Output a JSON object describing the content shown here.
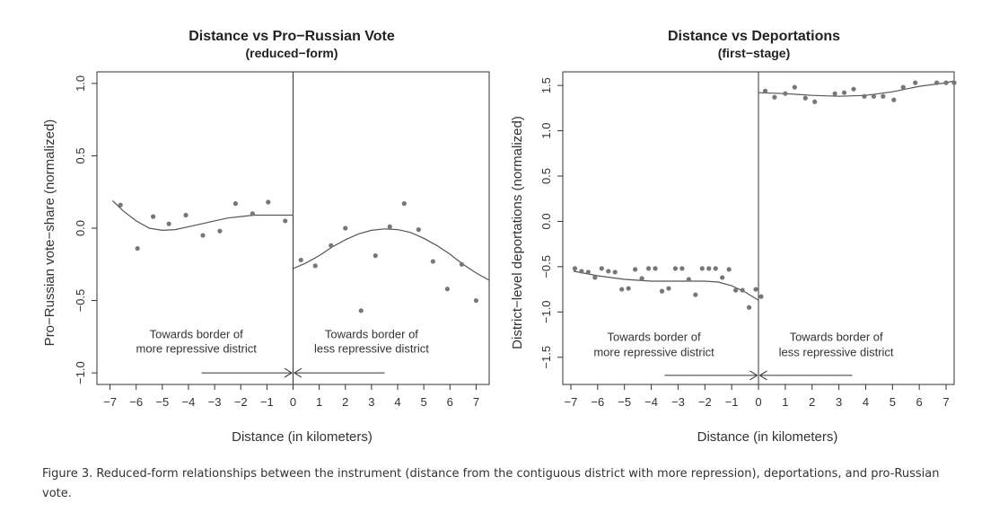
{
  "caption": "Figure 3. Reduced-form relationships between the instrument (distance from the contiguous district with more repression), deportations, and pro-Russian vote.",
  "chart_data": [
    {
      "type": "scatter",
      "title": "Distance vs Pro−Russian Vote",
      "subtitle": "(reduced−form)",
      "xlabel": "Distance (in kilometers)",
      "ylabel": "Pro−Russian vote−share (normalized)",
      "xlim": [
        -7.5,
        7.5
      ],
      "ylim": [
        -1.08,
        1.08
      ],
      "xticks": [
        -7,
        -6,
        -5,
        -4,
        -3,
        -2,
        -1,
        0,
        1,
        2,
        3,
        4,
        5,
        6,
        7
      ],
      "xtick_labels": [
        "−7",
        "−6",
        "−5",
        "−4",
        "−3",
        "−2",
        "−1",
        "0",
        "1",
        "2",
        "3",
        "4",
        "5",
        "6",
        "7"
      ],
      "yticks": [
        -1.0,
        -0.5,
        0.0,
        0.5,
        1.0
      ],
      "ytick_labels": [
        "−1.0",
        "−0.5",
        "0.0",
        "0.5",
        "1.0"
      ],
      "cutoff": 0,
      "grid": false,
      "points": [
        {
          "x": -6.6,
          "y": 0.16
        },
        {
          "x": -5.95,
          "y": -0.14
        },
        {
          "x": -5.35,
          "y": 0.08
        },
        {
          "x": -4.75,
          "y": 0.03
        },
        {
          "x": -4.1,
          "y": 0.09
        },
        {
          "x": -3.45,
          "y": -0.05
        },
        {
          "x": -2.8,
          "y": -0.02
        },
        {
          "x": -2.2,
          "y": 0.17
        },
        {
          "x": -1.55,
          "y": 0.1
        },
        {
          "x": -0.95,
          "y": 0.18
        },
        {
          "x": -0.3,
          "y": 0.05
        },
        {
          "x": 0.3,
          "y": -0.22
        },
        {
          "x": 0.85,
          "y": -0.26
        },
        {
          "x": 1.45,
          "y": -0.12
        },
        {
          "x": 2.0,
          "y": 0.0
        },
        {
          "x": 2.6,
          "y": -0.57
        },
        {
          "x": 3.15,
          "y": -0.19
        },
        {
          "x": 3.7,
          "y": 0.01
        },
        {
          "x": 4.25,
          "y": 0.17
        },
        {
          "x": 4.8,
          "y": -0.01
        },
        {
          "x": 5.35,
          "y": -0.23
        },
        {
          "x": 5.9,
          "y": -0.42
        },
        {
          "x": 6.45,
          "y": -0.25
        },
        {
          "x": 7.0,
          "y": -0.5
        }
      ],
      "fit_left": [
        {
          "x": -6.9,
          "y": 0.19
        },
        {
          "x": -6.5,
          "y": 0.12
        },
        {
          "x": -6.0,
          "y": 0.05
        },
        {
          "x": -5.5,
          "y": 0.0
        },
        {
          "x": -5.0,
          "y": -0.015
        },
        {
          "x": -4.5,
          "y": -0.01
        },
        {
          "x": -4.0,
          "y": 0.01
        },
        {
          "x": -3.5,
          "y": 0.03
        },
        {
          "x": -3.0,
          "y": 0.05
        },
        {
          "x": -2.5,
          "y": 0.07
        },
        {
          "x": -2.0,
          "y": 0.08
        },
        {
          "x": -1.5,
          "y": 0.09
        },
        {
          "x": -1.0,
          "y": 0.09
        },
        {
          "x": -0.5,
          "y": 0.09
        },
        {
          "x": 0.0,
          "y": 0.09
        }
      ],
      "fit_right": [
        {
          "x": 0.0,
          "y": -0.28
        },
        {
          "x": 0.5,
          "y": -0.24
        },
        {
          "x": 1.0,
          "y": -0.19
        },
        {
          "x": 1.5,
          "y": -0.13
        },
        {
          "x": 2.0,
          "y": -0.08
        },
        {
          "x": 2.5,
          "y": -0.04
        },
        {
          "x": 3.0,
          "y": -0.015
        },
        {
          "x": 3.5,
          "y": -0.005
        },
        {
          "x": 4.0,
          "y": -0.01
        },
        {
          "x": 4.5,
          "y": -0.03
        },
        {
          "x": 5.0,
          "y": -0.07
        },
        {
          "x": 5.5,
          "y": -0.12
        },
        {
          "x": 6.0,
          "y": -0.18
        },
        {
          "x": 6.5,
          "y": -0.25
        },
        {
          "x": 7.0,
          "y": -0.31
        },
        {
          "x": 7.5,
          "y": -0.36
        }
      ],
      "annotations": [
        {
          "line1": "Towards border of",
          "line2": "more repressive district",
          "x": -3.7,
          "y1": -0.76,
          "y2": -0.86,
          "anchor": "middle"
        },
        {
          "line1": "Towards border of",
          "line2": "less repressive district",
          "x": 3.0,
          "y1": -0.76,
          "y2": -0.86,
          "anchor": "middle"
        }
      ],
      "arrows": [
        {
          "x_from": -3.5,
          "x_to": -0.05,
          "y": -1.0
        },
        {
          "x_from": 3.5,
          "x_to": 0.05,
          "y": -1.0
        }
      ]
    },
    {
      "type": "scatter",
      "title": "Distance vs Deportations",
      "subtitle": "(first−stage)",
      "xlabel": "Distance (in kilometers)",
      "ylabel": "District−level deportations (normalized)",
      "xlim": [
        -7.3,
        7.3
      ],
      "ylim": [
        -1.8,
        1.65
      ],
      "xticks": [
        -7,
        -6,
        -5,
        -4,
        -3,
        -2,
        -1,
        0,
        1,
        2,
        3,
        4,
        5,
        6,
        7
      ],
      "xtick_labels": [
        "−7",
        "−6",
        "−5",
        "−4",
        "−3",
        "−2",
        "−1",
        "0",
        "1",
        "2",
        "3",
        "4",
        "5",
        "6",
        "7"
      ],
      "yticks": [
        -1.5,
        -1.0,
        -0.5,
        0.0,
        0.5,
        1.0,
        1.5
      ],
      "ytick_labels": [
        "−1.5",
        "−1.0",
        "−0.5",
        "0.0",
        "0.5",
        "1.0",
        "1.5"
      ],
      "cutoff": 0,
      "grid": false,
      "points": [
        {
          "x": -6.85,
          "y": -0.52
        },
        {
          "x": -6.6,
          "y": -0.55
        },
        {
          "x": -6.35,
          "y": -0.56
        },
        {
          "x": -6.1,
          "y": -0.62
        },
        {
          "x": -5.85,
          "y": -0.52
        },
        {
          "x": -5.6,
          "y": -0.55
        },
        {
          "x": -5.35,
          "y": -0.56
        },
        {
          "x": -5.1,
          "y": -0.75
        },
        {
          "x": -4.85,
          "y": -0.74
        },
        {
          "x": -4.6,
          "y": -0.53
        },
        {
          "x": -4.35,
          "y": -0.63
        },
        {
          "x": -4.1,
          "y": -0.52
        },
        {
          "x": -3.85,
          "y": -0.52
        },
        {
          "x": -3.6,
          "y": -0.77
        },
        {
          "x": -3.35,
          "y": -0.74
        },
        {
          "x": -3.1,
          "y": -0.52
        },
        {
          "x": -2.85,
          "y": -0.52
        },
        {
          "x": -2.6,
          "y": -0.64
        },
        {
          "x": -2.35,
          "y": -0.81
        },
        {
          "x": -2.1,
          "y": -0.52
        },
        {
          "x": -1.85,
          "y": -0.52
        },
        {
          "x": -1.6,
          "y": -0.52
        },
        {
          "x": -1.35,
          "y": -0.62
        },
        {
          "x": -1.1,
          "y": -0.53
        },
        {
          "x": -0.85,
          "y": -0.76
        },
        {
          "x": -0.6,
          "y": -0.76
        },
        {
          "x": -0.35,
          "y": -0.95
        },
        {
          "x": -0.1,
          "y": -0.75
        },
        {
          "x": 0.1,
          "y": -0.83
        },
        {
          "x": 0.25,
          "y": 1.44
        },
        {
          "x": 0.6,
          "y": 1.37
        },
        {
          "x": 1.0,
          "y": 1.41
        },
        {
          "x": 1.35,
          "y": 1.48
        },
        {
          "x": 1.75,
          "y": 1.36
        },
        {
          "x": 2.1,
          "y": 1.32
        },
        {
          "x": 2.85,
          "y": 1.41
        },
        {
          "x": 3.2,
          "y": 1.42
        },
        {
          "x": 3.55,
          "y": 1.46
        },
        {
          "x": 3.95,
          "y": 1.38
        },
        {
          "x": 4.3,
          "y": 1.38
        },
        {
          "x": 4.65,
          "y": 1.38
        },
        {
          "x": 5.05,
          "y": 1.34
        },
        {
          "x": 5.4,
          "y": 1.48
        },
        {
          "x": 5.85,
          "y": 1.53
        },
        {
          "x": 6.65,
          "y": 1.53
        },
        {
          "x": 7.0,
          "y": 1.53
        },
        {
          "x": 7.3,
          "y": 1.53
        }
      ],
      "fit_left": [
        {
          "x": -6.9,
          "y": -0.55
        },
        {
          "x": -6.0,
          "y": -0.6
        },
        {
          "x": -5.0,
          "y": -0.64
        },
        {
          "x": -4.0,
          "y": -0.66
        },
        {
          "x": -3.0,
          "y": -0.66
        },
        {
          "x": -2.0,
          "y": -0.66
        },
        {
          "x": -1.5,
          "y": -0.67
        },
        {
          "x": -1.0,
          "y": -0.71
        },
        {
          "x": -0.5,
          "y": -0.78
        },
        {
          "x": 0.0,
          "y": -0.87
        }
      ],
      "fit_right": [
        {
          "x": 0.0,
          "y": 1.42
        },
        {
          "x": 1.0,
          "y": 1.41
        },
        {
          "x": 2.0,
          "y": 1.39
        },
        {
          "x": 3.0,
          "y": 1.38
        },
        {
          "x": 4.0,
          "y": 1.39
        },
        {
          "x": 5.0,
          "y": 1.43
        },
        {
          "x": 6.0,
          "y": 1.49
        },
        {
          "x": 7.0,
          "y": 1.53
        },
        {
          "x": 7.3,
          "y": 1.55
        }
      ],
      "annotations": [
        {
          "line1": "Towards border of",
          "line2": "more repressive district",
          "x": -3.9,
          "y1": -1.32,
          "y2": -1.49,
          "anchor": "middle"
        },
        {
          "line1": "Towards border of",
          "line2": "less repressive district",
          "x": 2.9,
          "y1": -1.32,
          "y2": -1.49,
          "anchor": "middle"
        }
      ],
      "arrows": [
        {
          "x_from": -3.5,
          "x_to": -0.05,
          "y": -1.7
        },
        {
          "x_from": 3.5,
          "x_to": 0.05,
          "y": -1.7
        }
      ]
    }
  ]
}
